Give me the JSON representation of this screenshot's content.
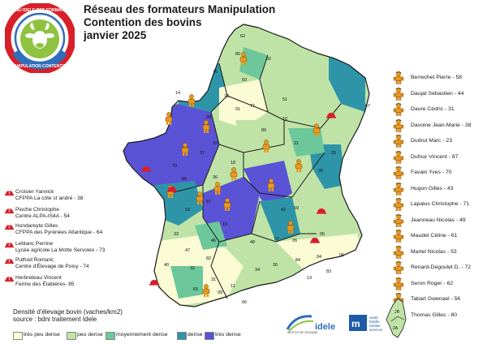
{
  "title": {
    "line1": "Réseau des formateurs Manipulation Contention des bovins",
    "line2": "janvier 2025"
  },
  "logo": {
    "top_text": "RÉSEAU IDELE DES FORMATEURS",
    "bottom_text": "MANIPULATION CONTENTION"
  },
  "trainers_hat": [
    {
      "name": "Croisier Yannick",
      "org": "CFPPA La côte st andré - 38"
    },
    {
      "name": "Pioche Christophe",
      "org": "Centre ALPA-IS4A - 54"
    },
    {
      "name": "Hondareyte Gilles",
      "org": "CFPPA des Pyrénées Atlantique - 64"
    },
    {
      "name": "Leblanc Perrine",
      "org": "Lycée agricole La Motte Servolex - 73"
    },
    {
      "name": "Puthod Romaric",
      "org": "Centre d'Élevage de Poisy - 74"
    },
    {
      "name": "Herbreteau Vincent",
      "org": "Ferme des Étabières- 85"
    }
  ],
  "trainers_person": [
    "Berrechet Pierre - 58",
    "Daujat Sébastien - 44",
    "Daure Cédric - 31",
    "Davoine Jean-Marie - 38",
    "Dudrut Marc - 23",
    "Dufour Vincent - 87",
    "Favain Yves - 70",
    "Hugon Gilles - 43",
    "Lapalus Christophe - 71",
    "Jeanneau Nicolas - 49",
    "Maudet Céline - 61",
    "Martel Nicolas - 53",
    "Renard-Degoulet D. - 72",
    "Seron Roger - 62",
    "Tabart Gwenael - 56",
    "Thomas Gilles - 80"
  ],
  "legend": {
    "title": "Densité d'élevage bovin (vaches/km2)",
    "source": "source : bdni traitement Idele",
    "classes": [
      {
        "label": "très peu dense",
        "color": "#fbfbd6"
      },
      {
        "label": "peu dense",
        "color": "#bfe3a6"
      },
      {
        "label": "moyennement dense",
        "color": "#6cc79a"
      },
      {
        "label": "dense",
        "color": "#2e95a8"
      },
      {
        "label": "très dense",
        "color": "#5a53d6"
      }
    ]
  },
  "departments": [
    "62",
    "59",
    "80",
    "76",
    "02",
    "08",
    "60",
    "50",
    "14",
    "27",
    "95",
    "93",
    "78",
    "92",
    "91",
    "77",
    "51",
    "55",
    "57",
    "67",
    "54",
    "88",
    "68",
    "29",
    "22",
    "56",
    "35",
    "53",
    "61",
    "72",
    "28",
    "45",
    "10",
    "52",
    "70",
    "90",
    "25",
    "39",
    "44",
    "49",
    "37",
    "41",
    "18",
    "58",
    "21",
    "89",
    "85",
    "79",
    "86",
    "36",
    "71",
    "01",
    "74",
    "73",
    "03",
    "42",
    "69",
    "38",
    "17",
    "16",
    "87",
    "23",
    "63",
    "19",
    "15",
    "43",
    "07",
    "26",
    "05",
    "04",
    "06",
    "24",
    "33",
    "47",
    "46",
    "12",
    "48",
    "30",
    "84",
    "13",
    "83",
    "40",
    "64",
    "32",
    "82",
    "81",
    "31",
    "65",
    "09",
    "11",
    "34",
    "66",
    "2B",
    "2A",
    "03",
    "23"
  ],
  "logos": {
    "idele_small": "INSTITUT DE L'ÉLEVAGE",
    "idele": "idele",
    "famille_lines": [
      "santé",
      "famille",
      "retraite",
      "services"
    ]
  },
  "colors": {
    "hat": "#d8202a",
    "person": "#e69a1e",
    "person_dark": "#8a4a08",
    "border": "#1a1a1a"
  }
}
